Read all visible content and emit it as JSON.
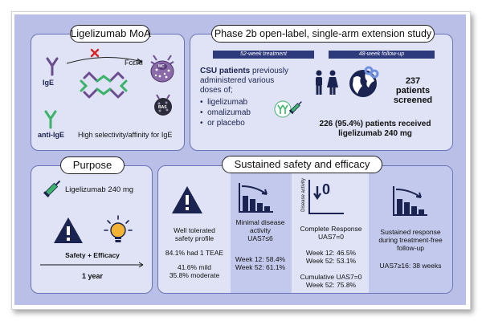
{
  "moa": {
    "title": "Ligelizumab MoA",
    "ige_label": "IgE",
    "receptor_label": "FcεRI",
    "anti_ige_label": "anti-IgE",
    "selectivity_text": "High selectivity/affinity for IgE",
    "mast_cell_label": "MC",
    "basophil_label": "BAS"
  },
  "study": {
    "title": "Phase 2b open-label, single-arm extension study",
    "treatment_label": "52-week treatment",
    "followup_label": "48-week follow-up",
    "intro_bold": "CSU patients",
    "intro_rest_1": " previously",
    "intro_rest_2": "administered various",
    "intro_rest_3": "doses of;",
    "doses": [
      "ligelizumab",
      "omalizumab",
      "or placebo"
    ],
    "screened_count": "237",
    "screened_line1": "patients",
    "screened_line2": "screened",
    "received_line1": "226 (95.4%) patients received",
    "received_line2": "ligelizumab 240 mg"
  },
  "purpose": {
    "title": "Purpose",
    "drug_label": "Ligelizumab 240 mg",
    "safety_label": "Safety + Efficacy",
    "duration": "1 year"
  },
  "outcomes": {
    "title": "Sustained safety and efficacy",
    "safety": {
      "line1": "Well tolerated",
      "line2": "safety profile",
      "teae": "84.1% had 1 TEAE",
      "mild": "41.6% mild",
      "moderate": "35.8% moderate"
    },
    "minimal": {
      "line1": "Minimal disease",
      "line2": "activity",
      "line3": "UAS7≤6",
      "week12": "Week 12: 58.4%",
      "week52": "Week 52: 61.1%"
    },
    "complete": {
      "axis_label": "Disease activity",
      "zero_label": "0",
      "line1": "Complete Response",
      "line2": "UAS7=0",
      "week12": "Week 12: 46.5%",
      "week52": "Week 52: 53.1%",
      "cum1": "Cumulative UAS7=0",
      "cum2": "Week 52: 75.8%"
    },
    "sustained": {
      "line1": "Sustained response",
      "line2": "during treatment-free",
      "line3": "follow-up",
      "uas": "UAS7≥16: 38 weeks"
    }
  },
  "colors": {
    "background": "#b9bfe6",
    "panel": "#dfe3f5",
    "band": "#c3c9ec",
    "navy": "#1b2450",
    "antibody_purple": "#6b4d8f",
    "antibody_green": "#3bb36a",
    "inhibit_red": "#d62222"
  }
}
